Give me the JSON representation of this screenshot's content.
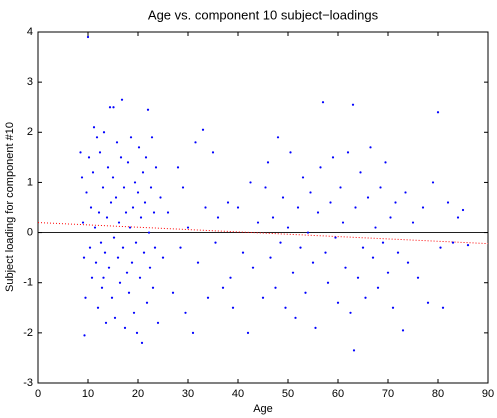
{
  "chart_data": {
    "type": "scatter",
    "title": "Age vs. component 10 subject−loadings",
    "x_label": "Age",
    "y_label": "Subject loading for component #10",
    "xlim": [
      0,
      90
    ],
    "ylim": [
      -3,
      4
    ],
    "xticks": [
      0,
      10,
      20,
      30,
      40,
      50,
      60,
      70,
      80,
      90
    ],
    "yticks": [
      -3,
      -2,
      -1,
      0,
      1,
      2,
      3,
      4
    ],
    "grid": false,
    "reference_line": {
      "y": 0,
      "color": "#000000"
    },
    "fit_line": {
      "x": [
        0,
        90
      ],
      "y": [
        0.2,
        -0.22
      ],
      "color": "#ff0000"
    },
    "series": [
      {
        "color": "#0000ff",
        "x": [
          8.5,
          8.8,
          9,
          9.2,
          9.5,
          9.7,
          10,
          10.2,
          10.4,
          10.6,
          10.8,
          11,
          11.2,
          11.4,
          11.6,
          11.8,
          12,
          12.2,
          12.4,
          12.6,
          12.8,
          13,
          13.2,
          13.4,
          13.6,
          13.8,
          14,
          14.2,
          14.4,
          14.6,
          14.8,
          15,
          15.2,
          15.4,
          15.6,
          15.8,
          16,
          16.2,
          16.4,
          16.6,
          16.8,
          17,
          17.2,
          17.4,
          17.6,
          17.8,
          18,
          18.2,
          18.4,
          18.6,
          18.8,
          19,
          19.2,
          19.4,
          19.6,
          19.8,
          20,
          20.2,
          20.4,
          20.6,
          20.8,
          21,
          21.2,
          21.4,
          21.6,
          21.8,
          22,
          22.2,
          22.4,
          22.6,
          22.8,
          23,
          23.2,
          23.4,
          23.6,
          24,
          24.5,
          25,
          9.3,
          15.1,
          13.1,
          26,
          27,
          28,
          28.5,
          29,
          29.5,
          30,
          31,
          31.5,
          32,
          33,
          33.5,
          34,
          35,
          35.5,
          36,
          37,
          38,
          38.5,
          39,
          40,
          41,
          42,
          42.5,
          43,
          44,
          45,
          45.5,
          46,
          46.5,
          47,
          47.5,
          48,
          48.5,
          49,
          49.5,
          50,
          50.5,
          51,
          51.5,
          52,
          52.5,
          53,
          53.5,
          54,
          54.5,
          55,
          55.5,
          56,
          56.5,
          57,
          57.5,
          58,
          58.5,
          59,
          59.5,
          60,
          60.5,
          61,
          61.5,
          62,
          62.5,
          63,
          63.2,
          63.5,
          64,
          64.5,
          65,
          65.5,
          66,
          66.5,
          67,
          67.5,
          68,
          68.5,
          69,
          69.5,
          70,
          70.5,
          71,
          71.5,
          72,
          73,
          73.5,
          74,
          75,
          76,
          77,
          78,
          79,
          80,
          80.5,
          81,
          82,
          83,
          84,
          85,
          86
        ],
        "values": [
          1.6,
          1.1,
          0.2,
          -0.5,
          -1.3,
          0.8,
          3.9,
          1.5,
          -0.3,
          0.5,
          -0.9,
          1.2,
          2.1,
          0.1,
          -0.6,
          1.9,
          -1.5,
          0.4,
          1.6,
          -0.2,
          -1.1,
          0.9,
          2,
          -0.4,
          -1.8,
          0.3,
          1.3,
          -0.7,
          2.5,
          0.6,
          -1.3,
          1.1,
          -0.1,
          -1.7,
          0.7,
          1.8,
          -0.5,
          0.2,
          -1,
          1.5,
          2.65,
          -0.3,
          0.9,
          -1.9,
          0.4,
          -0.8,
          1.4,
          -1.2,
          0.1,
          1.9,
          -0.6,
          0.5,
          -1.6,
          1,
          -0.2,
          -2,
          0.8,
          1.7,
          -0.9,
          0.3,
          -2.2,
          1.2,
          -0.4,
          0.6,
          1.5,
          -1.4,
          2.45,
          0,
          -0.7,
          0.9,
          1.9,
          -1.1,
          0.4,
          -0.3,
          1.3,
          -1.8,
          0.7,
          -0.5,
          -2.05,
          2.5,
          -0.9,
          0.4,
          -1.2,
          1.3,
          -0.3,
          0.9,
          -1.6,
          0.1,
          -2,
          1.8,
          -0.6,
          2.05,
          0.5,
          -1.3,
          1.6,
          -0.2,
          0.3,
          -1.1,
          0.6,
          -0.9,
          -1.5,
          0.5,
          -0.4,
          -2,
          1,
          -0.7,
          0.2,
          -1.3,
          0.9,
          1.4,
          -0.5,
          0.3,
          -1.1,
          1.9,
          -0.2,
          0.7,
          -1.5,
          0.1,
          1.6,
          -0.8,
          -1.7,
          0.5,
          -0.3,
          1.1,
          -1.2,
          0,
          0.8,
          -0.6,
          -1.9,
          0.4,
          1.3,
          2.6,
          -0.4,
          -1,
          0.6,
          1.5,
          -0.1,
          -1.4,
          0.9,
          0.2,
          -0.7,
          1.6,
          -1.6,
          2.55,
          -2.35,
          0.5,
          -0.9,
          1.2,
          -0.3,
          -1.3,
          0.7,
          1.7,
          -0.5,
          0.1,
          -1.1,
          0.9,
          -0.2,
          1.4,
          -0.8,
          0.3,
          -1.5,
          0.6,
          -0.4,
          -1.95,
          0.8,
          -0.6,
          0.2,
          -0.9,
          0.5,
          -1.4,
          1,
          2.4,
          -0.3,
          -1.5,
          0.6,
          -0.2,
          0.3,
          0.45,
          -0.25
        ]
      }
    ]
  }
}
